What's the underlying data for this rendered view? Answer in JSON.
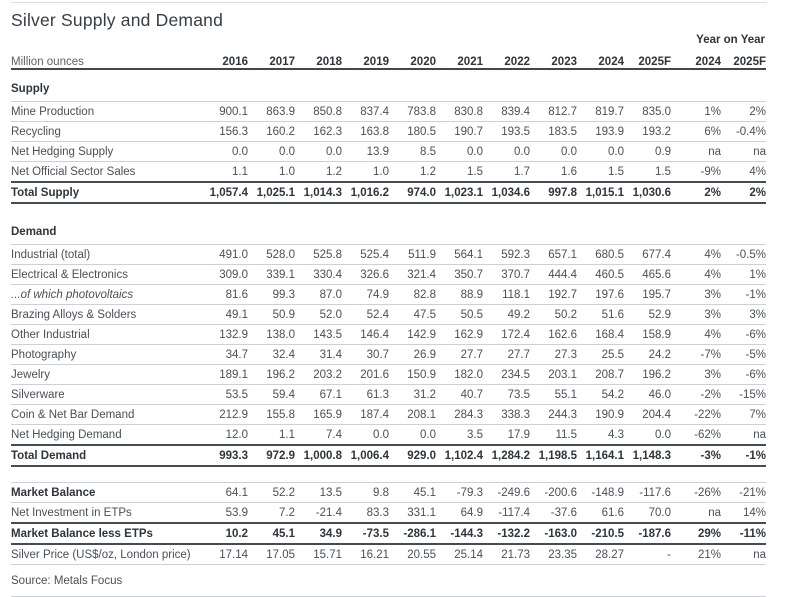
{
  "title": "Silver Supply and Demand",
  "source": "Source: Metals Focus",
  "table": {
    "unit_label": "Million ounces",
    "yoy_header": "Year on Year",
    "year_columns": [
      "2016",
      "2017",
      "2018",
      "2019",
      "2020",
      "2021",
      "2022",
      "2023",
      "2024",
      "2025F"
    ],
    "yoy_columns": [
      "2024",
      "2025F"
    ],
    "sections": [
      {
        "header": "Supply",
        "rows": [
          {
            "label": "Mine Production",
            "values": [
              "900.1",
              "863.9",
              "850.8",
              "837.4",
              "783.8",
              "830.8",
              "839.4",
              "812.7",
              "819.7",
              "835.0"
            ],
            "yoy": [
              "1%",
              "2%"
            ]
          },
          {
            "label": "Recycling",
            "values": [
              "156.3",
              "160.2",
              "162.3",
              "163.8",
              "180.5",
              "190.7",
              "193.5",
              "183.5",
              "193.9",
              "193.2"
            ],
            "yoy": [
              "6%",
              "-0.4%"
            ]
          },
          {
            "label": "Net Hedging Supply",
            "values": [
              "0.0",
              "0.0",
              "0.0",
              "13.9",
              "8.5",
              "0.0",
              "0.0",
              "0.0",
              "0.0",
              "0.9"
            ],
            "yoy": [
              "na",
              "na"
            ]
          },
          {
            "label": "Net Official Sector Sales",
            "values": [
              "1.1",
              "1.0",
              "1.2",
              "1.0",
              "1.2",
              "1.5",
              "1.7",
              "1.6",
              "1.5",
              "1.5"
            ],
            "yoy": [
              "-9%",
              "4%"
            ]
          },
          {
            "label": "Total Supply",
            "style": "total",
            "values": [
              "1,057.4",
              "1,025.1",
              "1,014.3",
              "1,016.2",
              "974.0",
              "1,023.1",
              "1,034.6",
              "997.8",
              "1,015.1",
              "1,030.6"
            ],
            "yoy": [
              "2%",
              "2%"
            ]
          }
        ]
      },
      {
        "header": "Demand",
        "rows": [
          {
            "label": "Industrial (total)",
            "values": [
              "491.0",
              "528.0",
              "525.8",
              "525.4",
              "511.9",
              "564.1",
              "592.3",
              "657.1",
              "680.5",
              "677.4"
            ],
            "yoy": [
              "4%",
              "-0.5%"
            ]
          },
          {
            "label": "Electrical & Electronics",
            "indent": true,
            "values": [
              "309.0",
              "339.1",
              "330.4",
              "326.6",
              "321.4",
              "350.7",
              "370.7",
              "444.4",
              "460.5",
              "465.6"
            ],
            "yoy": [
              "4%",
              "1%"
            ]
          },
          {
            "label": "...of which photovoltaics",
            "indent": true,
            "italic": true,
            "values": [
              "81.6",
              "99.3",
              "87.0",
              "74.9",
              "82.8",
              "88.9",
              "118.1",
              "192.7",
              "197.6",
              "195.7"
            ],
            "yoy": [
              "3%",
              "-1%"
            ]
          },
          {
            "label": "Brazing Alloys & Solders",
            "indent": true,
            "values": [
              "49.1",
              "50.9",
              "52.0",
              "52.4",
              "47.5",
              "50.5",
              "49.2",
              "50.2",
              "51.6",
              "52.9"
            ],
            "yoy": [
              "3%",
              "3%"
            ]
          },
          {
            "label": "Other Industrial",
            "indent": true,
            "values": [
              "132.9",
              "138.0",
              "143.5",
              "146.4",
              "142.9",
              "162.9",
              "172.4",
              "162.6",
              "168.4",
              "158.9"
            ],
            "yoy": [
              "4%",
              "-6%"
            ]
          },
          {
            "label": "Photography",
            "values": [
              "34.7",
              "32.4",
              "31.4",
              "30.7",
              "26.9",
              "27.7",
              "27.7",
              "27.3",
              "25.5",
              "24.2"
            ],
            "yoy": [
              "-7%",
              "-5%"
            ]
          },
          {
            "label": "Jewelry",
            "values": [
              "189.1",
              "196.2",
              "203.2",
              "201.6",
              "150.9",
              "182.0",
              "234.5",
              "203.1",
              "208.7",
              "196.2"
            ],
            "yoy": [
              "3%",
              "-6%"
            ]
          },
          {
            "label": "Silverware",
            "values": [
              "53.5",
              "59.4",
              "67.1",
              "61.3",
              "31.2",
              "40.7",
              "73.5",
              "55.1",
              "54.2",
              "46.0"
            ],
            "yoy": [
              "-2%",
              "-15%"
            ]
          },
          {
            "label": "Coin & Net Bar Demand",
            "values": [
              "212.9",
              "155.8",
              "165.9",
              "187.4",
              "208.1",
              "284.3",
              "338.3",
              "244.3",
              "190.9",
              "204.4"
            ],
            "yoy": [
              "-22%",
              "7%"
            ]
          },
          {
            "label": "Net Hedging Demand",
            "values": [
              "12.0",
              "1.1",
              "7.4",
              "0.0",
              "0.0",
              "3.5",
              "17.9",
              "11.5",
              "4.3",
              "0.0"
            ],
            "yoy": [
              "-62%",
              "na"
            ]
          },
          {
            "label": "Total Demand",
            "style": "total",
            "values": [
              "993.3",
              "972.9",
              "1,000.8",
              "1,006.4",
              "929.0",
              "1,102.4",
              "1,284.2",
              "1,198.5",
              "1,164.1",
              "1,148.3"
            ],
            "yoy": [
              "-3%",
              "-1%"
            ]
          }
        ]
      },
      {
        "header": null,
        "rows": [
          {
            "label": "Market Balance",
            "style": "bold-label",
            "rule_top": true,
            "values": [
              "64.1",
              "52.2",
              "13.5",
              "9.8",
              "45.1",
              "-79.3",
              "-249.6",
              "-200.6",
              "-148.9",
              "-117.6"
            ],
            "yoy": [
              "-26%",
              "-21%"
            ]
          },
          {
            "label": "Net Investment in ETPs",
            "values": [
              "53.9",
              "7.2",
              "-21.4",
              "83.3",
              "331.1",
              "64.9",
              "-117.4",
              "-37.6",
              "61.6",
              "70.0"
            ],
            "yoy": [
              "na",
              "14%"
            ]
          },
          {
            "label": "Market Balance less ETPs",
            "style": "total",
            "values": [
              "10.2",
              "45.1",
              "34.9",
              "-73.5",
              "-286.1",
              "-144.3",
              "-132.2",
              "-163.0",
              "-210.5",
              "-187.6"
            ],
            "yoy": [
              "29%",
              "-11%"
            ]
          },
          {
            "label": "Silver Price (US$/oz, London price)",
            "values": [
              "17.14",
              "17.05",
              "15.71",
              "16.21",
              "20.55",
              "25.14",
              "21.73",
              "23.35",
              "28.27",
              "-"
            ],
            "yoy": [
              "21%",
              "na"
            ]
          }
        ]
      }
    ]
  }
}
